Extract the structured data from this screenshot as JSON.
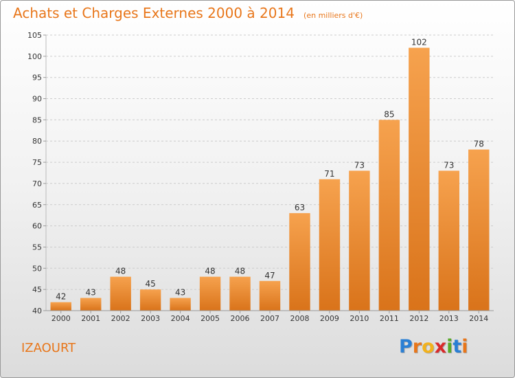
{
  "header": {
    "title": "Achats et Charges Externes 2000 à 2014",
    "subtitle": "(en milliers d'€)"
  },
  "place": "IZAOURT",
  "logo": {
    "text": "Proxiti",
    "letters": [
      {
        "ch": "P",
        "color": "#2a7fd4"
      },
      {
        "ch": "r",
        "color": "#e8761a"
      },
      {
        "ch": "o",
        "color": "#f2b21c"
      },
      {
        "ch": "x",
        "color": "#d92a2a"
      },
      {
        "ch": "i",
        "color": "#5aaa2a"
      },
      {
        "ch": "t",
        "color": "#2a7fd4"
      },
      {
        "ch": "i",
        "color": "#e8761a"
      }
    ]
  },
  "chart_data": {
    "type": "bar",
    "title": "Achats et Charges Externes 2000 à 2014",
    "subtitle": "(en milliers d'€)",
    "categories": [
      "2000",
      "2001",
      "2002",
      "2003",
      "2004",
      "2005",
      "2006",
      "2007",
      "2008",
      "2009",
      "2010",
      "2011",
      "2012",
      "2013",
      "2014"
    ],
    "values": [
      42,
      43,
      48,
      45,
      43,
      48,
      48,
      47,
      63,
      71,
      73,
      85,
      102,
      73,
      78
    ],
    "ylim": [
      40,
      105
    ],
    "yticks": [
      40,
      45,
      50,
      55,
      60,
      65,
      70,
      75,
      80,
      85,
      90,
      95,
      100,
      105
    ],
    "grid": true,
    "colors": {
      "bar_light": "#f6a24e",
      "bar_dark": "#d9731a",
      "grid": "#cccccc",
      "text": "#333333"
    }
  }
}
